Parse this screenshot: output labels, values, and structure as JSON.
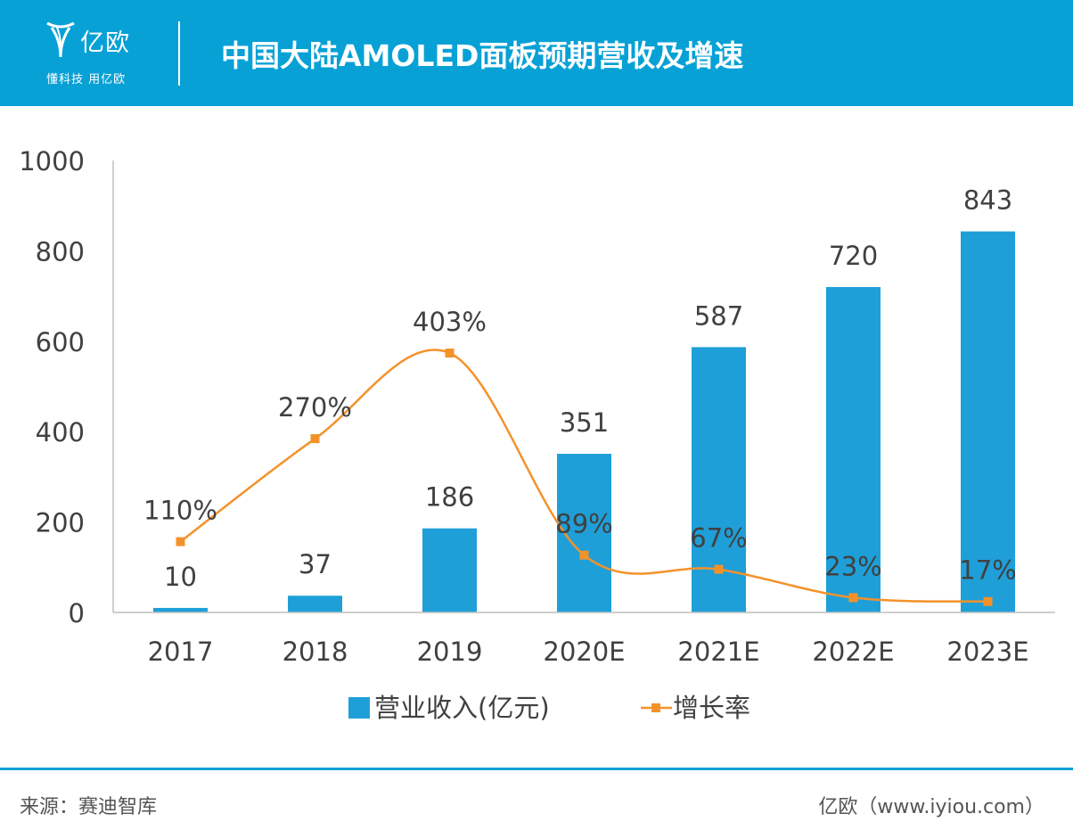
{
  "header": {
    "logo_name": "亿欧",
    "logo_slogan": "懂科技 用亿欧",
    "title": "中国大陆AMOLED面板预期营收及增速"
  },
  "footer": {
    "source": "来源：赛迪智库",
    "brand": "亿欧（www.iyiou.com）"
  },
  "colors": {
    "header_bg": "#08a1d6",
    "bar": "#1f9fd8",
    "line": "#f4922a"
  },
  "chart_data": {
    "type": "bar",
    "categories": [
      "2017",
      "2018",
      "2019",
      "2020E",
      "2021E",
      "2022E",
      "2023E"
    ],
    "y_ticks": [
      "0",
      "200",
      "400",
      "600",
      "800",
      "1000"
    ],
    "ylim": [
      0,
      1000
    ],
    "series": [
      {
        "name": "营业收入(亿元)",
        "type": "bar",
        "values": [
          10,
          37,
          186,
          351,
          587,
          720,
          843
        ],
        "labels": [
          "10",
          "37",
          "186",
          "351",
          "587",
          "720",
          "843"
        ]
      },
      {
        "name": "增长率",
        "type": "line",
        "values": [
          110,
          270,
          403,
          89,
          67,
          23,
          17
        ],
        "labels": [
          "110%",
          "270%",
          "403%",
          "89%",
          "67%",
          "23%",
          "17%"
        ],
        "unit": "%"
      }
    ],
    "legend_position": "bottom",
    "grid": false
  }
}
